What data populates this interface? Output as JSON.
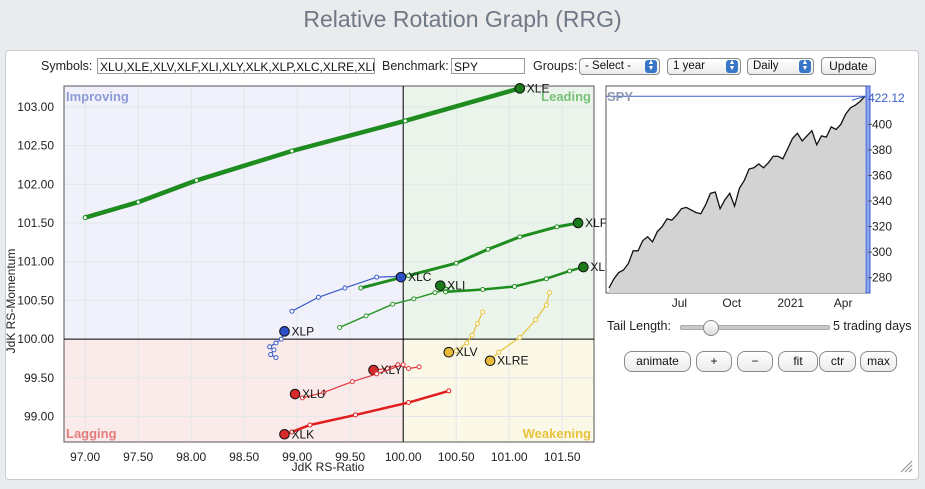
{
  "title": "Relative Rotation Graph (RRG)",
  "controls": {
    "symbols_label": "Symbols:",
    "symbols_value": "XLU,XLE,XLV,XLF,XLI,XLY,XLK,XLP,XLC,XLRE,XLB",
    "benchmark_label": "Benchmark:",
    "benchmark_value": "SPY",
    "groups_label": "Groups:",
    "groups_value": "- Select -",
    "period_value": "1 year",
    "interval_value": "Daily",
    "update_label": "Update"
  },
  "chart_data": [
    {
      "type": "scatter",
      "name": "rrg",
      "xlabel": "JdK RS-Ratio",
      "ylabel": "JdK RS-Momentum",
      "xlim": [
        96.8,
        101.8
      ],
      "ylim": [
        98.67,
        103.27
      ],
      "x_ticks": [
        97.0,
        97.5,
        98.0,
        98.5,
        99.0,
        99.5,
        100.0,
        100.5,
        101.0,
        101.5
      ],
      "x_tick_labels": [
        "97.00",
        "97.50",
        "98.00",
        "98.50",
        "99.00",
        "99.50",
        "100.00",
        "100.50",
        "101.00",
        "101.50"
      ],
      "y_ticks": [
        99.0,
        99.5,
        100.0,
        100.5,
        101.0,
        101.5,
        102.0,
        102.5,
        103.0
      ],
      "y_tick_labels": [
        "99.00",
        "99.50",
        "100.00",
        "100.50",
        "101.00",
        "101.50",
        "102.00",
        "102.50",
        "103.00"
      ],
      "quadrants": [
        {
          "label": "Improving",
          "label_color": "#8c9bd8",
          "fill": "#f0f1fa"
        },
        {
          "label": "Leading",
          "label_color": "#78c278",
          "fill": "#eaf4ea"
        },
        {
          "label": "Lagging",
          "label_color": "#e37c7c",
          "fill": "#fbeaea"
        },
        {
          "label": "Weakening",
          "label_color": "#e8c23b",
          "fill": "#fbf8e8"
        }
      ],
      "series": [
        {
          "name": "XLE",
          "color": "#1f8c1f",
          "point_color": "#1a7a1a",
          "width": 4.5,
          "points": [
            [
              97.0,
              101.57
            ],
            [
              97.5,
              101.77
            ],
            [
              98.05,
              102.05
            ],
            [
              98.95,
              102.43
            ],
            [
              100.02,
              102.82
            ],
            [
              101.1,
              103.24
            ]
          ]
        },
        {
          "name": "XLF",
          "color": "#1f8c1f",
          "point_color": "#1a7a1a",
          "width": 3,
          "points": [
            [
              99.6,
              100.66
            ],
            [
              100.05,
              100.82
            ],
            [
              100.5,
              100.98
            ],
            [
              100.8,
              101.16
            ],
            [
              101.1,
              101.32
            ],
            [
              101.45,
              101.45
            ],
            [
              101.65,
              101.5
            ]
          ]
        },
        {
          "name": "XLB",
          "color": "#1f8c1f",
          "point_color": "#1a7a1a",
          "width": 2.5,
          "points": [
            [
              100.4,
              100.61
            ],
            [
              100.75,
              100.64
            ],
            [
              101.05,
              100.68
            ],
            [
              101.35,
              100.78
            ],
            [
              101.57,
              100.88
            ],
            [
              101.7,
              100.93
            ]
          ]
        },
        {
          "name": "XLI",
          "color": "#2f982f",
          "point_color": "#1a7a1a",
          "width": 1.5,
          "points": [
            [
              99.4,
              100.15
            ],
            [
              99.65,
              100.3
            ],
            [
              99.9,
              100.45
            ],
            [
              100.1,
              100.52
            ],
            [
              100.3,
              100.6
            ],
            [
              100.45,
              100.65
            ],
            [
              100.35,
              100.69
            ]
          ]
        },
        {
          "name": "XLC",
          "color": "#3a5cc8",
          "point_color": "#2b50c8",
          "width": 1.2,
          "points": [
            [
              98.95,
              100.36
            ],
            [
              99.2,
              100.54
            ],
            [
              99.45,
              100.66
            ],
            [
              99.75,
              100.8
            ],
            [
              99.95,
              100.81
            ],
            [
              99.98,
              100.8
            ]
          ]
        },
        {
          "name": "XLP",
          "color": "#3a5cc8",
          "point_color": "#2b50c8",
          "width": 1.2,
          "points": [
            [
              98.8,
              99.76
            ],
            [
              98.75,
              99.8
            ],
            [
              98.78,
              99.86
            ],
            [
              98.74,
              99.9
            ],
            [
              98.8,
              99.95
            ],
            [
              98.85,
              100.0
            ],
            [
              98.88,
              100.1
            ]
          ]
        },
        {
          "name": "XLV",
          "color": "#e8c23b",
          "point_color": "#e8b93a",
          "width": 1.2,
          "points": [
            [
              100.75,
              100.35
            ],
            [
              100.7,
              100.2
            ],
            [
              100.65,
              100.05
            ],
            [
              100.6,
              99.95
            ],
            [
              100.5,
              99.85
            ],
            [
              100.43,
              99.83
            ]
          ]
        },
        {
          "name": "XLRE",
          "color": "#e8c23b",
          "point_color": "#e8b93a",
          "width": 1.2,
          "points": [
            [
              101.38,
              100.6
            ],
            [
              101.35,
              100.44
            ],
            [
              101.25,
              100.25
            ],
            [
              101.1,
              100.02
            ],
            [
              100.9,
              99.83
            ],
            [
              100.82,
              99.72
            ]
          ]
        },
        {
          "name": "XLY",
          "color": "#e0363a",
          "point_color": "#d82a2a",
          "width": 1.2,
          "points": [
            [
              100.15,
              99.64
            ],
            [
              100.05,
              99.62
            ],
            [
              99.95,
              99.67
            ],
            [
              99.85,
              99.62
            ],
            [
              99.72,
              99.6
            ]
          ]
        },
        {
          "name": "XLU",
          "color": "#e0363a",
          "point_color": "#d82a2a",
          "width": 1.2,
          "points": [
            [
              100.0,
              99.67
            ],
            [
              99.75,
              99.55
            ],
            [
              99.52,
              99.45
            ],
            [
              99.25,
              99.31
            ],
            [
              99.05,
              99.24
            ],
            [
              98.98,
              99.29
            ]
          ]
        },
        {
          "name": "XLK",
          "color": "#e01e1e",
          "point_color": "#d82a2a",
          "width": 2.5,
          "points": [
            [
              100.43,
              99.33
            ],
            [
              100.05,
              99.18
            ],
            [
              99.55,
              99.02
            ],
            [
              99.12,
              98.89
            ],
            [
              98.95,
              98.8
            ],
            [
              98.88,
              98.77
            ]
          ]
        }
      ]
    },
    {
      "type": "area",
      "name": "SPY",
      "title": "SPY",
      "last_value_label": "422.12",
      "ylim": [
        268,
        430
      ],
      "y_ticks": [
        280,
        300,
        320,
        340,
        360,
        380,
        400
      ],
      "x_ticks": [
        2.8,
        4.8,
        7.05,
        9.05
      ],
      "x_tick_labels": [
        "Jul",
        "Oct",
        "2021",
        "Apr"
      ],
      "x_range": [
        0,
        10
      ],
      "values": [
        272,
        279,
        284,
        286,
        291,
        301,
        301,
        309,
        312,
        308,
        316,
        320,
        326,
        325,
        329,
        334,
        335,
        333,
        331,
        330,
        337,
        346,
        347,
        334,
        341,
        346,
        336,
        350,
        356,
        365,
        366,
        369,
        366,
        370,
        375,
        375,
        373,
        381,
        389,
        393,
        387,
        391,
        395,
        384,
        391,
        390,
        398,
        396,
        400,
        408,
        413,
        415,
        418,
        422
      ]
    }
  ],
  "tail": {
    "label": "Tail Length:",
    "value_label": "5 trading days",
    "fraction": 0.1
  },
  "buttons": [
    "animate",
    "+",
    "−",
    "fit",
    "ctr",
    "max"
  ]
}
